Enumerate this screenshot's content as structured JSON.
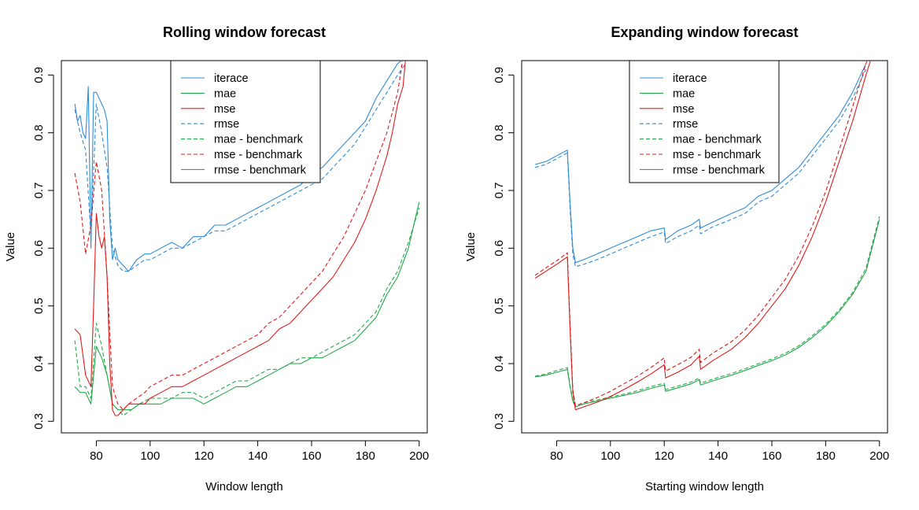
{
  "colors": {
    "iterace": "#2F8CD8",
    "mae": "#22A84A",
    "mse": "#E01B1B",
    "rmse_bench": "#2F8CD8",
    "mae_bench": "#22A84A",
    "mse_bench": "#E01B1B"
  },
  "chart_data": [
    {
      "type": "line",
      "title": "Rolling window forecast",
      "xlabel": "Window length",
      "ylabel": "Value",
      "xlim": [
        67,
        203
      ],
      "ylim": [
        0.28,
        0.925
      ],
      "xticks": [
        80,
        100,
        120,
        140,
        160,
        180,
        200
      ],
      "yticks": [
        0.3,
        0.4,
        0.5,
        0.6,
        0.7,
        0.8,
        0.9
      ],
      "legend": [
        "iterace",
        "mae",
        "mse",
        "rmse",
        "mae - benchmark",
        "mse - benchmark",
        "rmse - benchmark"
      ],
      "legend_position": "top-center",
      "series": [
        {
          "legend_index": 0,
          "color": "iterace",
          "dash": false,
          "x": [
            72,
            73,
            74,
            75,
            76,
            77,
            78,
            79,
            80,
            81,
            82,
            83,
            84,
            85,
            86,
            87,
            88,
            90,
            92,
            95,
            98,
            100,
            104,
            108,
            112,
            116,
            120,
            124,
            128,
            132,
            136,
            140,
            144,
            148,
            152,
            156,
            160,
            164,
            168,
            172,
            176,
            180,
            184,
            188,
            192,
            195
          ],
          "y": [
            0.85,
            0.82,
            0.83,
            0.8,
            0.79,
            0.88,
            0.6,
            0.87,
            0.87,
            0.86,
            0.85,
            0.84,
            0.82,
            0.65,
            0.58,
            0.6,
            0.58,
            0.57,
            0.56,
            0.58,
            0.59,
            0.59,
            0.6,
            0.61,
            0.6,
            0.62,
            0.62,
            0.64,
            0.64,
            0.65,
            0.66,
            0.67,
            0.68,
            0.69,
            0.7,
            0.71,
            0.73,
            0.74,
            0.76,
            0.78,
            0.8,
            0.82,
            0.86,
            0.89,
            0.92,
            0.93
          ]
        },
        {
          "legend_index": 3,
          "color": "iterace",
          "dash": true,
          "x": [
            72,
            74,
            76,
            78,
            80,
            82,
            84,
            86,
            88,
            90,
            92,
            95,
            98,
            100,
            104,
            108,
            112,
            116,
            120,
            124,
            128,
            132,
            136,
            140,
            144,
            148,
            152,
            156,
            160,
            164,
            168,
            172,
            176,
            180,
            184,
            188,
            192,
            195
          ],
          "y": [
            0.84,
            0.8,
            0.77,
            0.62,
            0.85,
            0.8,
            0.74,
            0.6,
            0.57,
            0.56,
            0.56,
            0.57,
            0.58,
            0.58,
            0.59,
            0.6,
            0.6,
            0.61,
            0.62,
            0.63,
            0.63,
            0.64,
            0.65,
            0.66,
            0.67,
            0.68,
            0.69,
            0.7,
            0.71,
            0.72,
            0.74,
            0.76,
            0.78,
            0.81,
            0.84,
            0.87,
            0.9,
            0.92
          ]
        },
        {
          "legend_index": 1,
          "color": "mae",
          "dash": false,
          "x": [
            72,
            74,
            76,
            78,
            80,
            82,
            84,
            86,
            88,
            90,
            93,
            96,
            100,
            104,
            108,
            112,
            116,
            120,
            124,
            128,
            132,
            136,
            140,
            144,
            148,
            152,
            156,
            160,
            164,
            168,
            172,
            176,
            180,
            184,
            188,
            192,
            196,
            200
          ],
          "y": [
            0.36,
            0.35,
            0.35,
            0.33,
            0.43,
            0.41,
            0.38,
            0.33,
            0.32,
            0.32,
            0.32,
            0.33,
            0.33,
            0.33,
            0.34,
            0.34,
            0.34,
            0.33,
            0.34,
            0.35,
            0.36,
            0.36,
            0.37,
            0.38,
            0.39,
            0.4,
            0.4,
            0.41,
            0.41,
            0.42,
            0.43,
            0.44,
            0.46,
            0.48,
            0.52,
            0.55,
            0.6,
            0.68
          ]
        },
        {
          "legend_index": 4,
          "color": "mae_bench",
          "dash": true,
          "x": [
            72,
            74,
            76,
            78,
            80,
            82,
            84,
            86,
            88,
            90,
            93,
            96,
            100,
            104,
            108,
            112,
            116,
            120,
            124,
            128,
            132,
            136,
            140,
            144,
            148,
            152,
            156,
            160,
            164,
            168,
            172,
            176,
            180,
            184,
            188,
            192,
            196,
            200
          ],
          "y": [
            0.44,
            0.36,
            0.36,
            0.34,
            0.47,
            0.43,
            0.38,
            0.33,
            0.32,
            0.31,
            0.32,
            0.33,
            0.34,
            0.34,
            0.34,
            0.35,
            0.35,
            0.34,
            0.35,
            0.36,
            0.37,
            0.37,
            0.38,
            0.39,
            0.39,
            0.4,
            0.41,
            0.41,
            0.42,
            0.43,
            0.44,
            0.45,
            0.47,
            0.49,
            0.53,
            0.56,
            0.61,
            0.67
          ]
        },
        {
          "legend_index": 2,
          "color": "mse",
          "dash": false,
          "x": [
            72,
            74,
            76,
            78,
            79,
            80,
            81,
            82,
            83,
            84,
            85,
            86,
            87,
            88,
            90,
            92,
            95,
            98,
            100,
            104,
            108,
            112,
            116,
            120,
            124,
            128,
            132,
            136,
            140,
            144,
            148,
            152,
            156,
            160,
            164,
            168,
            172,
            176,
            180,
            184,
            188,
            190,
            192,
            194,
            195
          ],
          "y": [
            0.46,
            0.45,
            0.38,
            0.36,
            0.5,
            0.66,
            0.62,
            0.6,
            0.62,
            0.55,
            0.4,
            0.32,
            0.31,
            0.31,
            0.32,
            0.33,
            0.33,
            0.33,
            0.34,
            0.35,
            0.36,
            0.36,
            0.37,
            0.38,
            0.39,
            0.4,
            0.41,
            0.42,
            0.43,
            0.44,
            0.46,
            0.47,
            0.49,
            0.51,
            0.53,
            0.55,
            0.58,
            0.61,
            0.65,
            0.7,
            0.76,
            0.8,
            0.85,
            0.88,
            0.93
          ]
        },
        {
          "legend_index": 5,
          "color": "mse_bench",
          "dash": true,
          "x": [
            72,
            74,
            76,
            78,
            80,
            82,
            84,
            86,
            88,
            90,
            92,
            95,
            98,
            100,
            104,
            108,
            112,
            116,
            120,
            124,
            128,
            132,
            136,
            140,
            144,
            148,
            152,
            156,
            160,
            164,
            168,
            172,
            176,
            180,
            184,
            188,
            192,
            194
          ],
          "y": [
            0.73,
            0.68,
            0.59,
            0.64,
            0.75,
            0.7,
            0.55,
            0.36,
            0.33,
            0.32,
            0.33,
            0.34,
            0.35,
            0.36,
            0.37,
            0.38,
            0.38,
            0.39,
            0.4,
            0.41,
            0.42,
            0.43,
            0.44,
            0.45,
            0.47,
            0.48,
            0.5,
            0.52,
            0.54,
            0.56,
            0.59,
            0.62,
            0.66,
            0.7,
            0.75,
            0.8,
            0.87,
            0.93
          ]
        },
        {
          "legend_index": 6,
          "color": "rmse_bench",
          "dash": false,
          "x": [],
          "y": []
        }
      ]
    },
    {
      "type": "line",
      "title": "Expanding window forecast",
      "xlabel": "Starting window length",
      "ylabel": "Value",
      "xlim": [
        67,
        203
      ],
      "ylim": [
        0.28,
        0.925
      ],
      "xticks": [
        80,
        100,
        120,
        140,
        160,
        180,
        200
      ],
      "yticks": [
        0.3,
        0.4,
        0.5,
        0.6,
        0.7,
        0.8,
        0.9
      ],
      "legend": [
        "iterace",
        "mae",
        "mse",
        "rmse",
        "mae - benchmark",
        "mse - benchmark",
        "rmse - benchmark"
      ],
      "legend_position": "top-center",
      "series": [
        {
          "legend_index": 0,
          "color": "iterace",
          "dash": false,
          "x": [
            72,
            76,
            80,
            84,
            85,
            86,
            87,
            90,
            95,
            100,
            105,
            110,
            115,
            120,
            120.5,
            125,
            130,
            133,
            133.5,
            138,
            145,
            150,
            155,
            160,
            165,
            170,
            175,
            180,
            185,
            190,
            195
          ],
          "y": [
            0.745,
            0.75,
            0.76,
            0.77,
            0.68,
            0.6,
            0.575,
            0.58,
            0.59,
            0.6,
            0.61,
            0.62,
            0.63,
            0.635,
            0.615,
            0.63,
            0.64,
            0.65,
            0.635,
            0.645,
            0.66,
            0.67,
            0.69,
            0.7,
            0.72,
            0.74,
            0.77,
            0.8,
            0.83,
            0.87,
            0.92
          ]
        },
        {
          "legend_index": 3,
          "color": "iterace",
          "dash": true,
          "x": [
            72,
            76,
            80,
            84,
            85,
            86,
            87,
            90,
            95,
            100,
            105,
            110,
            115,
            120,
            120.5,
            125,
            130,
            133,
            133.5,
            138,
            145,
            150,
            155,
            160,
            165,
            170,
            175,
            180,
            185,
            190,
            195
          ],
          "y": [
            0.74,
            0.745,
            0.755,
            0.765,
            0.67,
            0.59,
            0.568,
            0.572,
            0.58,
            0.59,
            0.6,
            0.61,
            0.62,
            0.628,
            0.608,
            0.62,
            0.63,
            0.64,
            0.625,
            0.637,
            0.65,
            0.66,
            0.68,
            0.69,
            0.71,
            0.73,
            0.76,
            0.79,
            0.82,
            0.86,
            0.91
          ]
        },
        {
          "legend_index": 1,
          "color": "mae",
          "dash": false,
          "x": [
            72,
            76,
            80,
            84,
            85,
            86,
            87,
            90,
            95,
            100,
            105,
            110,
            115,
            120,
            120.5,
            125,
            130,
            133,
            133.5,
            138,
            145,
            150,
            155,
            160,
            165,
            170,
            175,
            180,
            185,
            190,
            195,
            200
          ],
          "y": [
            0.377,
            0.38,
            0.385,
            0.39,
            0.36,
            0.335,
            0.325,
            0.33,
            0.335,
            0.34,
            0.345,
            0.35,
            0.357,
            0.363,
            0.352,
            0.358,
            0.365,
            0.372,
            0.363,
            0.37,
            0.38,
            0.388,
            0.397,
            0.405,
            0.415,
            0.428,
            0.445,
            0.465,
            0.49,
            0.52,
            0.56,
            0.65
          ]
        },
        {
          "legend_index": 4,
          "color": "mae_bench",
          "dash": true,
          "x": [
            72,
            76,
            80,
            84,
            85,
            86,
            87,
            90,
            95,
            100,
            105,
            110,
            115,
            120,
            120.5,
            125,
            130,
            133,
            133.5,
            138,
            145,
            150,
            155,
            160,
            165,
            170,
            175,
            180,
            185,
            190,
            195,
            200
          ],
          "y": [
            0.378,
            0.382,
            0.388,
            0.393,
            0.362,
            0.337,
            0.327,
            0.332,
            0.337,
            0.342,
            0.347,
            0.353,
            0.36,
            0.366,
            0.355,
            0.361,
            0.368,
            0.375,
            0.366,
            0.373,
            0.383,
            0.391,
            0.4,
            0.408,
            0.418,
            0.431,
            0.448,
            0.468,
            0.493,
            0.523,
            0.565,
            0.655
          ]
        },
        {
          "legend_index": 2,
          "color": "mse",
          "dash": false,
          "x": [
            72,
            76,
            80,
            84,
            85,
            86,
            87,
            90,
            95,
            100,
            105,
            110,
            115,
            120,
            120.5,
            125,
            130,
            133,
            133.5,
            138,
            145,
            150,
            155,
            160,
            165,
            170,
            175,
            180,
            185,
            190,
            195,
            197
          ],
          "y": [
            0.548,
            0.56,
            0.572,
            0.585,
            0.46,
            0.35,
            0.32,
            0.325,
            0.333,
            0.343,
            0.355,
            0.368,
            0.382,
            0.398,
            0.375,
            0.385,
            0.398,
            0.413,
            0.39,
            0.405,
            0.425,
            0.445,
            0.47,
            0.5,
            0.53,
            0.57,
            0.62,
            0.68,
            0.75,
            0.82,
            0.9,
            0.93
          ]
        },
        {
          "legend_index": 5,
          "color": "mse_bench",
          "dash": true,
          "x": [
            72,
            76,
            80,
            84,
            85,
            86,
            87,
            90,
            95,
            100,
            105,
            110,
            115,
            120,
            120.5,
            125,
            130,
            133,
            133.5,
            138,
            145,
            150,
            155,
            160,
            165,
            170,
            175,
            180,
            185,
            190,
            195,
            196
          ],
          "y": [
            0.553,
            0.566,
            0.578,
            0.592,
            0.47,
            0.355,
            0.327,
            0.332,
            0.341,
            0.352,
            0.365,
            0.378,
            0.393,
            0.41,
            0.387,
            0.398,
            0.411,
            0.425,
            0.402,
            0.418,
            0.438,
            0.458,
            0.484,
            0.515,
            0.546,
            0.587,
            0.638,
            0.698,
            0.77,
            0.845,
            0.92,
            0.93
          ]
        },
        {
          "legend_index": 6,
          "color": "rmse_bench",
          "dash": false,
          "x": [],
          "y": []
        }
      ]
    }
  ]
}
